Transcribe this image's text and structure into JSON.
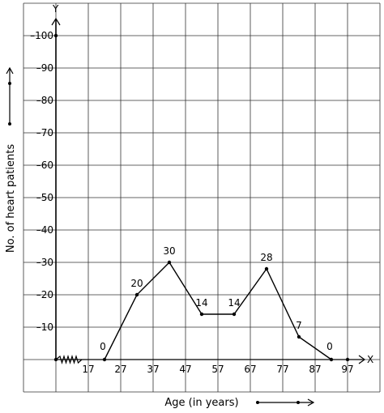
{
  "chart_data": {
    "type": "line",
    "title": "",
    "xlabel": "Age (in years)",
    "ylabel": "No. of heart patients",
    "x_axis_letter": "X",
    "y_axis_letter": "Y",
    "x_ticks": [
      "17",
      "27",
      "37",
      "47",
      "57",
      "67",
      "77",
      "87",
      "97"
    ],
    "y_ticks": [
      "10",
      "20",
      "30",
      "40",
      "50",
      "60",
      "70",
      "80",
      "90",
      "100"
    ],
    "xlim": [
      7,
      107
    ],
    "ylim": [
      0,
      100
    ],
    "grid": true,
    "series": [
      {
        "x": [
          22,
          32,
          42,
          52,
          62,
          72,
          82,
          92
        ],
        "y": [
          0,
          20,
          30,
          14,
          14,
          28,
          7,
          0
        ],
        "labels": [
          "0",
          "20",
          "30",
          "14",
          "14",
          "28",
          "7",
          "0"
        ]
      }
    ]
  }
}
